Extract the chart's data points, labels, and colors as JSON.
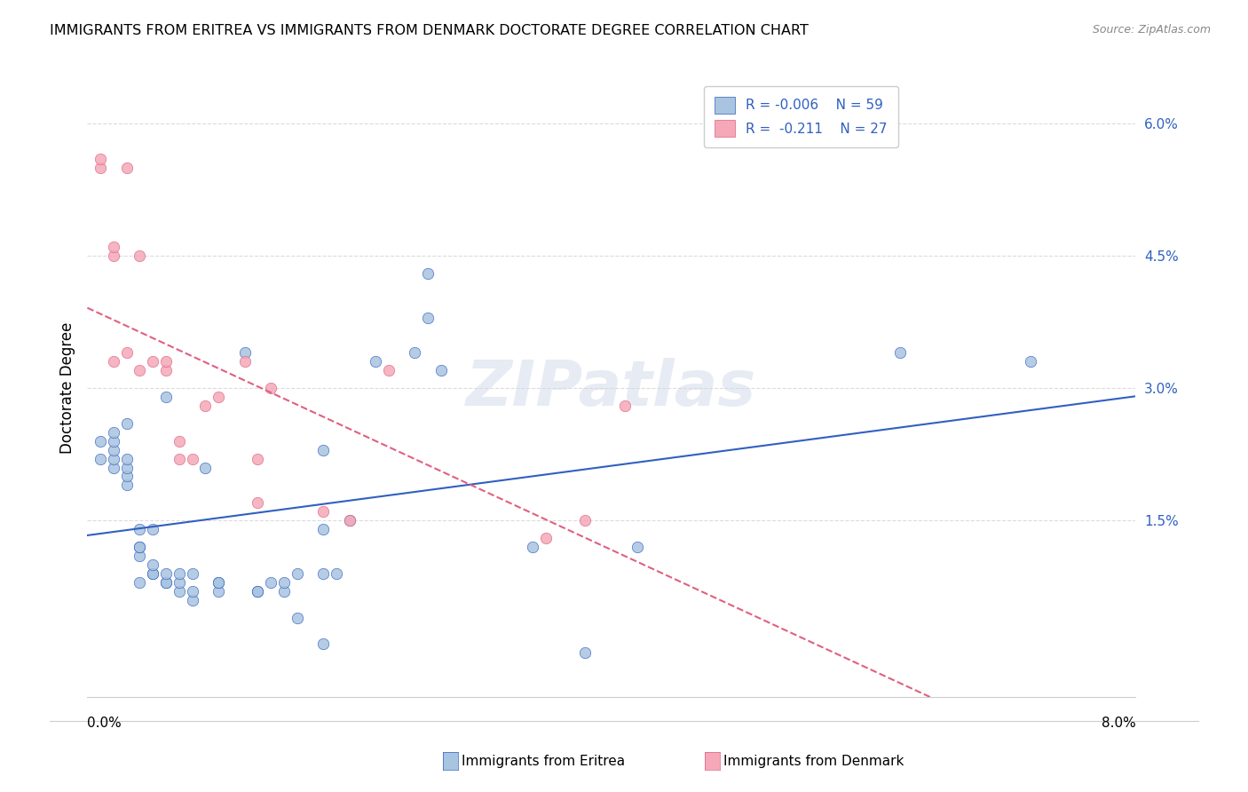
{
  "title": "IMMIGRANTS FROM ERITREA VS IMMIGRANTS FROM DENMARK DOCTORATE DEGREE CORRELATION CHART",
  "source": "Source: ZipAtlas.com",
  "ylabel": "Doctorate Degree",
  "right_yticks": [
    "6.0%",
    "4.5%",
    "3.0%",
    "1.5%"
  ],
  "right_ytick_vals": [
    0.06,
    0.045,
    0.03,
    0.015
  ],
  "x_min": 0.0,
  "x_max": 0.08,
  "y_min": -0.005,
  "y_max": 0.065,
  "eritrea_color": "#a8c4e0",
  "denmark_color": "#f4a8b8",
  "eritrea_line_color": "#3060c0",
  "denmark_line_color": "#e06080",
  "watermark": "ZIPatlas",
  "eritrea_x": [
    0.001,
    0.001,
    0.002,
    0.002,
    0.002,
    0.002,
    0.002,
    0.003,
    0.003,
    0.003,
    0.003,
    0.003,
    0.004,
    0.004,
    0.004,
    0.004,
    0.004,
    0.005,
    0.005,
    0.005,
    0.005,
    0.006,
    0.006,
    0.006,
    0.006,
    0.007,
    0.007,
    0.007,
    0.008,
    0.008,
    0.008,
    0.009,
    0.01,
    0.01,
    0.01,
    0.012,
    0.013,
    0.013,
    0.014,
    0.015,
    0.015,
    0.016,
    0.016,
    0.018,
    0.018,
    0.018,
    0.018,
    0.019,
    0.02,
    0.022,
    0.025,
    0.026,
    0.026,
    0.027,
    0.034,
    0.038,
    0.042,
    0.062,
    0.072
  ],
  "eritrea_y": [
    0.022,
    0.024,
    0.021,
    0.022,
    0.023,
    0.024,
    0.025,
    0.019,
    0.02,
    0.021,
    0.022,
    0.026,
    0.008,
    0.011,
    0.012,
    0.012,
    0.014,
    0.009,
    0.009,
    0.01,
    0.014,
    0.008,
    0.008,
    0.009,
    0.029,
    0.007,
    0.008,
    0.009,
    0.006,
    0.007,
    0.009,
    0.021,
    0.007,
    0.008,
    0.008,
    0.034,
    0.007,
    0.007,
    0.008,
    0.007,
    0.008,
    0.004,
    0.009,
    0.014,
    0.001,
    0.009,
    0.023,
    0.009,
    0.015,
    0.033,
    0.034,
    0.038,
    0.043,
    0.032,
    0.012,
    0.0,
    0.012,
    0.034,
    0.033
  ],
  "denmark_x": [
    0.001,
    0.001,
    0.002,
    0.002,
    0.002,
    0.003,
    0.003,
    0.004,
    0.004,
    0.005,
    0.006,
    0.006,
    0.007,
    0.007,
    0.008,
    0.009,
    0.01,
    0.012,
    0.013,
    0.013,
    0.014,
    0.018,
    0.02,
    0.023,
    0.035,
    0.038,
    0.041
  ],
  "denmark_y": [
    0.055,
    0.056,
    0.045,
    0.046,
    0.033,
    0.055,
    0.034,
    0.045,
    0.032,
    0.033,
    0.032,
    0.033,
    0.024,
    0.022,
    0.022,
    0.028,
    0.029,
    0.033,
    0.022,
    0.017,
    0.03,
    0.016,
    0.015,
    0.032,
    0.013,
    0.015,
    0.028
  ]
}
